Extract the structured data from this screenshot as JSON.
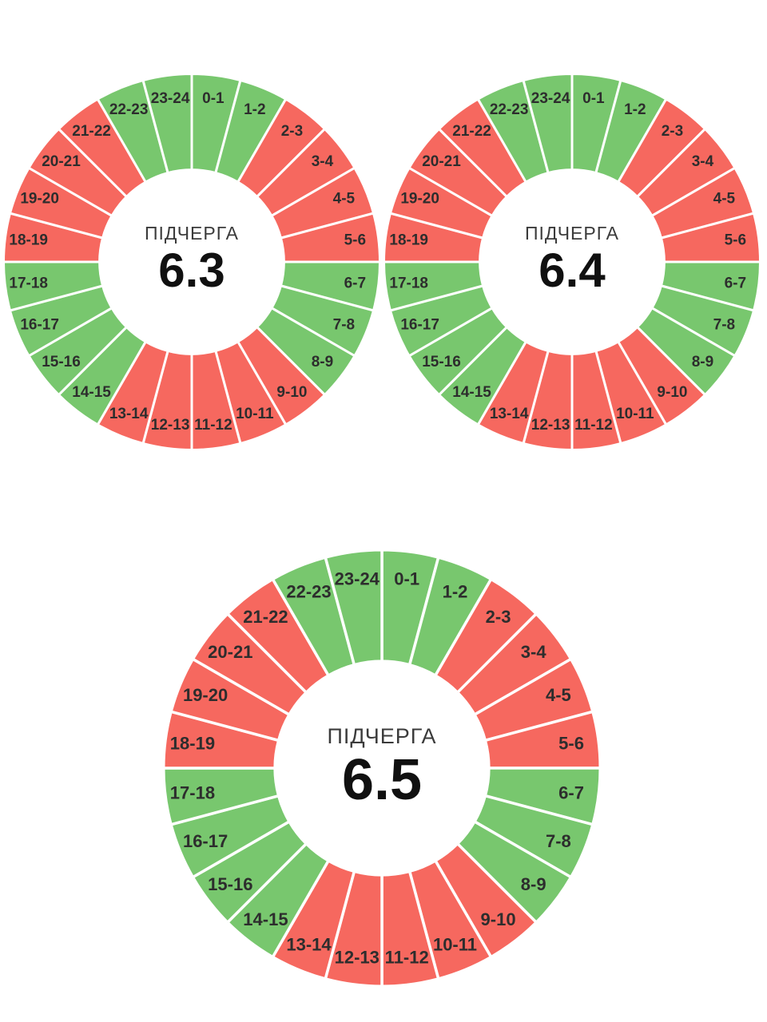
{
  "page": {
    "background": "#ffffff"
  },
  "colors": {
    "green": "#78C76E",
    "red": "#F6685F",
    "divider": "#ffffff",
    "hour_label": "#2d2d2d",
    "center_title": "#3b3b3b",
    "center_value": "#101010"
  },
  "chart_data": [
    {
      "type": "donut",
      "center_label": "ПІДЧЕРГА",
      "center_value": "6.3",
      "legend_position": "none",
      "categories": [
        "0-1",
        "1-2",
        "2-3",
        "3-4",
        "4-5",
        "5-6",
        "6-7",
        "7-8",
        "8-9",
        "9-10",
        "10-11",
        "11-12",
        "12-13",
        "13-14",
        "14-15",
        "15-16",
        "16-17",
        "17-18",
        "18-19",
        "19-20",
        "20-21",
        "21-22",
        "22-23",
        "23-24"
      ],
      "segment_colors": [
        "green",
        "green",
        "red",
        "red",
        "red",
        "red",
        "green",
        "green",
        "green",
        "red",
        "red",
        "red",
        "red",
        "red",
        "green",
        "green",
        "green",
        "green",
        "red",
        "red",
        "red",
        "red",
        "green",
        "green"
      ]
    },
    {
      "type": "donut",
      "center_label": "ПІДЧЕРГА",
      "center_value": "6.4",
      "legend_position": "none",
      "categories": [
        "0-1",
        "1-2",
        "2-3",
        "3-4",
        "4-5",
        "5-6",
        "6-7",
        "7-8",
        "8-9",
        "9-10",
        "10-11",
        "11-12",
        "12-13",
        "13-14",
        "14-15",
        "15-16",
        "16-17",
        "17-18",
        "18-19",
        "19-20",
        "20-21",
        "21-22",
        "22-23",
        "23-24"
      ],
      "segment_colors": [
        "green",
        "green",
        "red",
        "red",
        "red",
        "red",
        "green",
        "green",
        "green",
        "red",
        "red",
        "red",
        "red",
        "red",
        "green",
        "green",
        "green",
        "green",
        "red",
        "red",
        "red",
        "red",
        "green",
        "green"
      ]
    },
    {
      "type": "donut",
      "center_label": "ПІДЧЕРГА",
      "center_value": "6.5",
      "legend_position": "none",
      "categories": [
        "0-1",
        "1-2",
        "2-3",
        "3-4",
        "4-5",
        "5-6",
        "6-7",
        "7-8",
        "8-9",
        "9-10",
        "10-11",
        "11-12",
        "12-13",
        "13-14",
        "14-15",
        "15-16",
        "16-17",
        "17-18",
        "18-19",
        "19-20",
        "20-21",
        "21-22",
        "22-23",
        "23-24"
      ],
      "segment_colors": [
        "green",
        "green",
        "red",
        "red",
        "red",
        "red",
        "green",
        "green",
        "green",
        "red",
        "red",
        "red",
        "red",
        "red",
        "green",
        "green",
        "green",
        "green",
        "red",
        "red",
        "red",
        "red",
        "green",
        "green"
      ]
    }
  ]
}
